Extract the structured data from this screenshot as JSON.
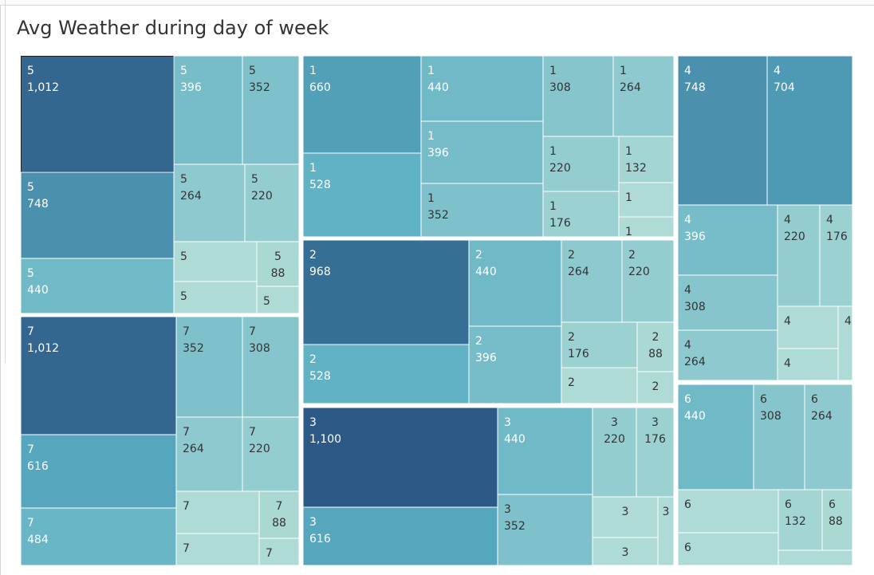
{
  "title": "Avg Weather during day of week",
  "chart_data": {
    "type": "treemap",
    "title": "Avg Weather during day of week",
    "groups": [
      {
        "name": "5",
        "cells": [
          {
            "label": "5",
            "value": 1012
          },
          {
            "label": "5",
            "value": 748
          },
          {
            "label": "5",
            "value": 440
          },
          {
            "label": "5",
            "value": 396
          },
          {
            "label": "5",
            "value": 352
          },
          {
            "label": "5",
            "value": 264
          },
          {
            "label": "5",
            "value": 220
          },
          {
            "label": "5",
            "value": 88
          },
          {
            "label": "5",
            "value": null
          },
          {
            "label": "5",
            "value": null
          },
          {
            "label": "5",
            "value": null
          }
        ]
      },
      {
        "name": "7",
        "cells": [
          {
            "label": "7",
            "value": 1012
          },
          {
            "label": "7",
            "value": 616
          },
          {
            "label": "7",
            "value": 484
          },
          {
            "label": "7",
            "value": 352
          },
          {
            "label": "7",
            "value": 308
          },
          {
            "label": "7",
            "value": 264
          },
          {
            "label": "7",
            "value": 220
          },
          {
            "label": "7",
            "value": 88
          },
          {
            "label": "7",
            "value": null
          },
          {
            "label": "7",
            "value": null
          },
          {
            "label": "7",
            "value": null
          }
        ]
      },
      {
        "name": "1",
        "cells": [
          {
            "label": "1",
            "value": 660
          },
          {
            "label": "1",
            "value": 528
          },
          {
            "label": "1",
            "value": 440
          },
          {
            "label": "1",
            "value": 396
          },
          {
            "label": "1",
            "value": 352
          },
          {
            "label": "1",
            "value": 308
          },
          {
            "label": "1",
            "value": 264
          },
          {
            "label": "1",
            "value": 220
          },
          {
            "label": "1",
            "value": 176
          },
          {
            "label": "1",
            "value": 132
          },
          {
            "label": "1",
            "value": null
          },
          {
            "label": "1",
            "value": null
          }
        ]
      },
      {
        "name": "2",
        "cells": [
          {
            "label": "2",
            "value": 968
          },
          {
            "label": "2",
            "value": 528
          },
          {
            "label": "2",
            "value": 440
          },
          {
            "label": "2",
            "value": 396
          },
          {
            "label": "2",
            "value": 264
          },
          {
            "label": "2",
            "value": 220
          },
          {
            "label": "2",
            "value": 176
          },
          {
            "label": "2",
            "value": 88
          },
          {
            "label": "2",
            "value": null
          },
          {
            "label": "2",
            "value": null
          }
        ]
      },
      {
        "name": "3",
        "cells": [
          {
            "label": "3",
            "value": 1100
          },
          {
            "label": "3",
            "value": 616
          },
          {
            "label": "3",
            "value": 440
          },
          {
            "label": "3",
            "value": 352
          },
          {
            "label": "3",
            "value": 220
          },
          {
            "label": "3",
            "value": 176
          },
          {
            "label": "3",
            "value": null
          },
          {
            "label": "3",
            "value": null
          },
          {
            "label": "3",
            "value": null
          }
        ]
      },
      {
        "name": "4",
        "cells": [
          {
            "label": "4",
            "value": 748
          },
          {
            "label": "4",
            "value": 704
          },
          {
            "label": "4",
            "value": 396
          },
          {
            "label": "4",
            "value": 308
          },
          {
            "label": "4",
            "value": 264
          },
          {
            "label": "4",
            "value": 220
          },
          {
            "label": "4",
            "value": 176
          },
          {
            "label": "4",
            "value": null
          },
          {
            "label": "4",
            "value": null
          },
          {
            "label": "4",
            "value": null
          }
        ]
      },
      {
        "name": "6",
        "cells": [
          {
            "label": "6",
            "value": 440
          },
          {
            "label": "6",
            "value": 308
          },
          {
            "label": "6",
            "value": 264
          },
          {
            "label": "6",
            "value": 132
          },
          {
            "label": "6",
            "value": 88
          },
          {
            "label": "6",
            "value": null
          },
          {
            "label": "6",
            "value": null
          },
          {
            "label": "6",
            "value": null
          }
        ]
      }
    ],
    "color_scale": {
      "low": "#b2ddd6",
      "high": "#2c5985",
      "border": "#ffffff",
      "selected_border": "#222222"
    },
    "label_color": "#ffffff",
    "label_color_light": "#333333"
  }
}
